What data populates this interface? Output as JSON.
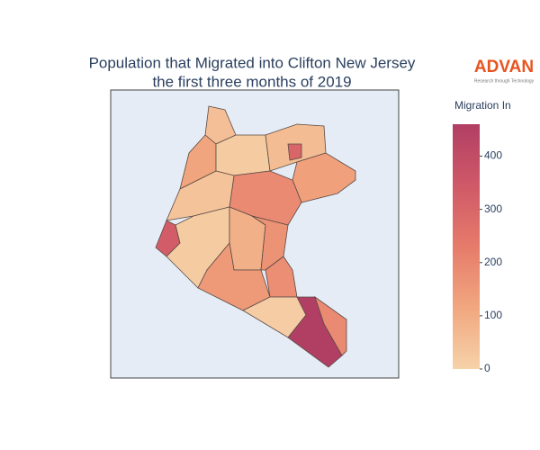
{
  "chart_data": {
    "type": "choropleth",
    "title": [
      "Population that Migrated into Clifton New Jersey",
      "the first three months of 2019"
    ],
    "values": [
      50,
      120,
      20,
      60,
      300,
      130,
      190,
      40,
      330,
      20,
      90,
      170,
      150,
      180,
      15,
      460,
      190
    ],
    "colorbar_title": "Migration In",
    "clim": [
      0,
      460
    ],
    "cticks": [
      0,
      100,
      200,
      300,
      400
    ],
    "colorscale": [
      "#f6d2a9",
      "#f1a77f",
      "#e67b6b",
      "#cf5968",
      "#b13f64"
    ],
    "border_color": "#5a4a44",
    "logo": {
      "name": "ADVAN",
      "tagline": "Research through Technology"
    }
  }
}
